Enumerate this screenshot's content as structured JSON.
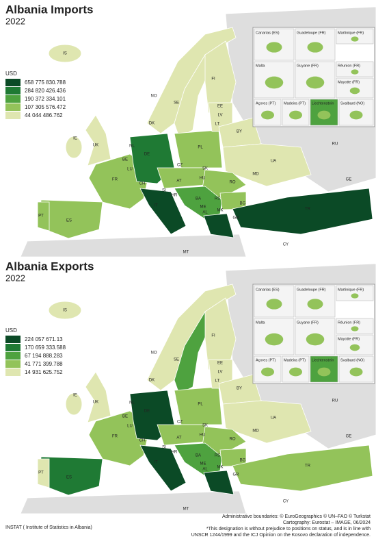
{
  "maps": [
    {
      "title": "Albania Imports",
      "subtitle": "2022",
      "legend": {
        "title": "USD",
        "classes": [
          {
            "value": 658775830.788,
            "label": "658 775 830.788",
            "color": "#0b4a26"
          },
          {
            "value": 284820426.436,
            "label": "284 820 426.436",
            "color": "#1f7a34"
          },
          {
            "value": 190372334.101,
            "label": "190 372 334.101",
            "color": "#4ea23f"
          },
          {
            "value": 107305576.472,
            "label": "107 305 576.472",
            "color": "#93c35a"
          },
          {
            "value": 44044486.762,
            "label": "44 044 486.762",
            "color": "#dfe6b0"
          }
        ]
      },
      "country_labels": [
        "IS",
        "NO",
        "SE",
        "FI",
        "EE",
        "LV",
        "LT",
        "BY",
        "RU",
        "UA",
        "IE",
        "UK",
        "NL",
        "BE",
        "LU",
        "DE",
        "DK",
        "PL",
        "CZ",
        "SK",
        "FR",
        "CH",
        "AT",
        "HU",
        "RO",
        "MD",
        "SI",
        "HR",
        "BA",
        "RS",
        "ME",
        "AL",
        "MK",
        "BG",
        "GR",
        "IT",
        "ES",
        "PT",
        "TR",
        "GE",
        "CY",
        "MT"
      ]
    },
    {
      "title": "Albania Exports",
      "subtitle": "2022",
      "legend": {
        "title": "USD",
        "classes": [
          {
            "value": 224057671.13,
            "label": "224 057 671.13",
            "color": "#0b4a26"
          },
          {
            "value": 170659333.588,
            "label": "170 659 333.588",
            "color": "#1f7a34"
          },
          {
            "value": 67194888.283,
            "label": "67 194 888.283",
            "color": "#4ea23f"
          },
          {
            "value": 41771399.788,
            "label": "41 771 399.788",
            "color": "#93c35a"
          },
          {
            "value": 14931625.752,
            "label": "14 931 625.752",
            "color": "#dfe6b0"
          }
        ]
      },
      "country_labels": [
        "IS",
        "NO",
        "SE",
        "FI",
        "EE",
        "LV",
        "LT",
        "BY",
        "RU",
        "UA",
        "IE",
        "UK",
        "NL",
        "BE",
        "LU",
        "DE",
        "DK",
        "PL",
        "CZ",
        "SK",
        "FR",
        "CH",
        "AT",
        "HU",
        "RO",
        "MD",
        "SI",
        "HR",
        "BA",
        "RS",
        "ME",
        "AL",
        "MK",
        "BG",
        "GR",
        "IT",
        "ES",
        "PT",
        "TR",
        "GE",
        "CY",
        "MT"
      ]
    }
  ],
  "insets": [
    "Canarias (ES)",
    "Guadeloupe (FR)",
    "Martinique (FR)",
    "Malta",
    "Guyane (FR)",
    "Réunion (FR)",
    "Mayotte (FR)",
    "Açores (PT)",
    "Madeira (PT)",
    "Liechtenstein",
    "Svalbard (NO)"
  ],
  "footer": {
    "source": "INSTAT ( Institute of Statistics in Albania)",
    "credits": [
      "Administrative boundaries: © EuroGeographics © UN–FAO © Turkstat",
      "Cartography: Eurostat – IMAGE, 06/2024",
      "*This designation is without prejudice to positions on status, and is in line with",
      "UNSCR 1244/1999 and the ICJ Opinion on the Kosovo declaration of independence."
    ]
  }
}
